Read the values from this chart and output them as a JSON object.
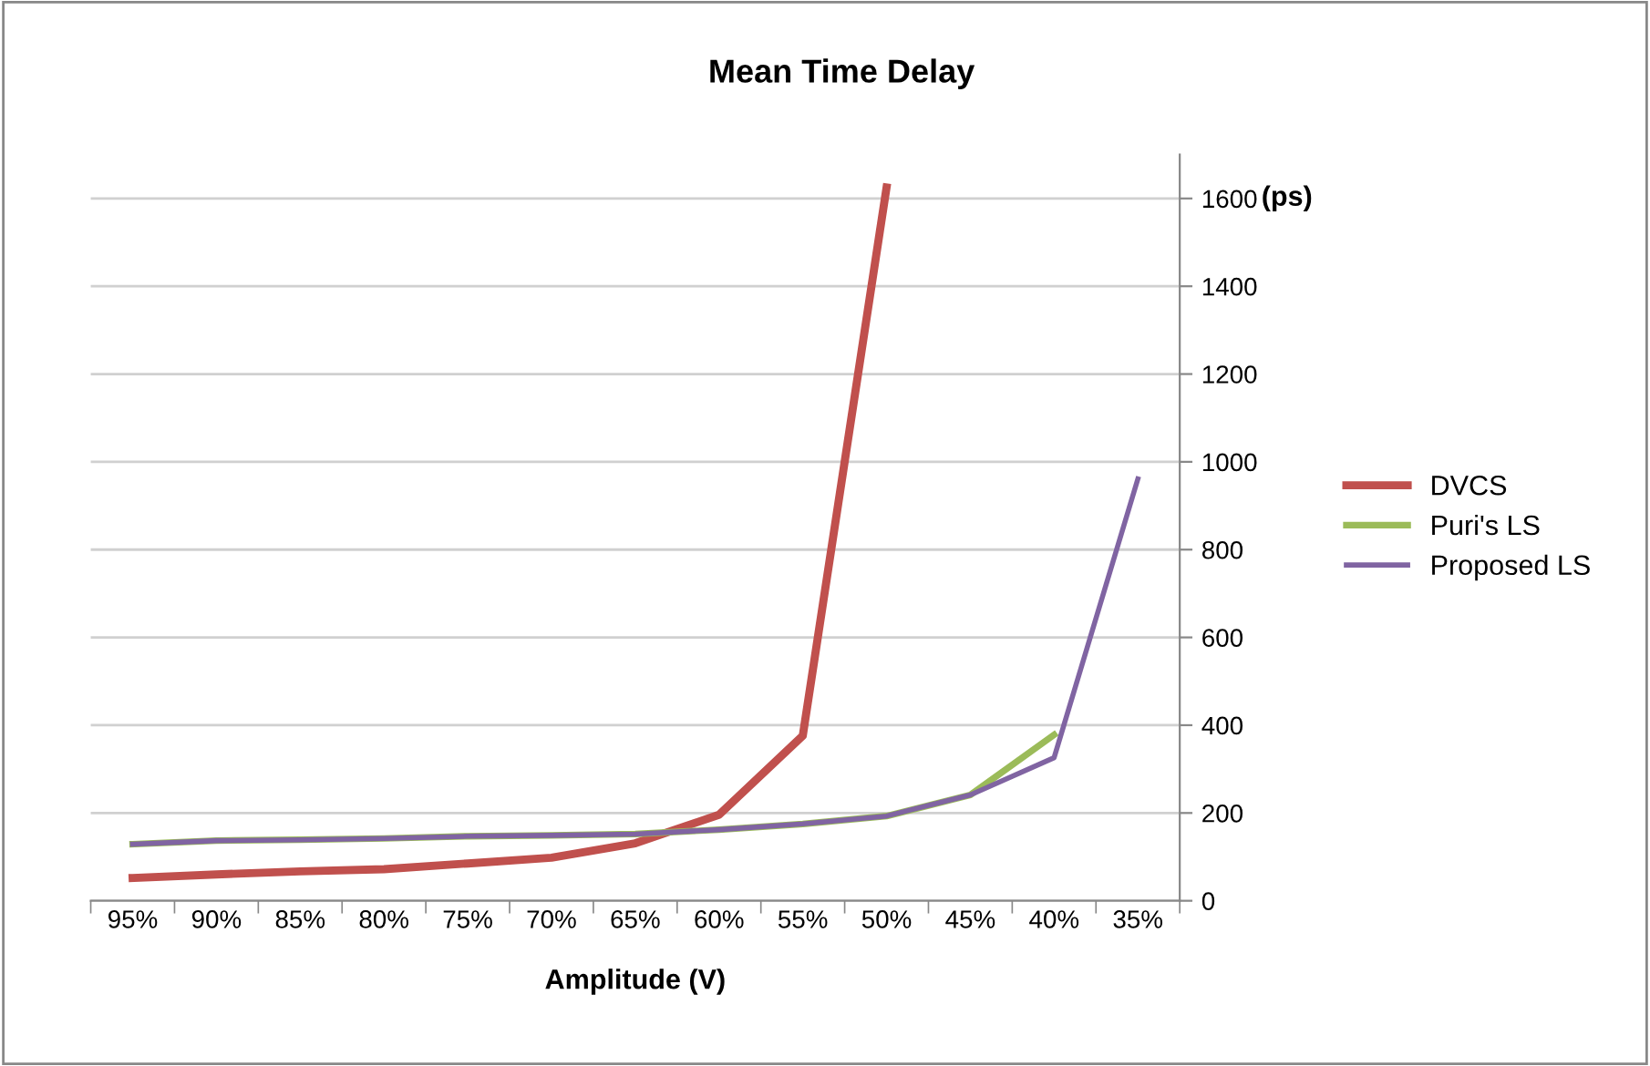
{
  "chart_data": {
    "type": "line",
    "title": "Mean Time Delay",
    "xlabel": "Amplitude (V)",
    "ylabel": "(ps)",
    "categories": [
      "95%",
      "90%",
      "85%",
      "80%",
      "75%",
      "70%",
      "65%",
      "60%",
      "55%",
      "50%",
      "45%",
      "40%",
      "35%"
    ],
    "series": [
      {
        "name": "DVCS",
        "color": "#c0504d",
        "values": [
          52,
          60,
          67,
          72,
          85,
          98,
          131,
          196,
          376,
          1625,
          null,
          null,
          null
        ]
      },
      {
        "name": "Puri's LS",
        "color": "#9bbb59",
        "values": [
          129,
          137,
          139,
          142,
          147,
          149,
          152,
          162,
          175,
          193,
          241,
          378,
          null
        ]
      },
      {
        "name": "Proposed LS",
        "color": "#8064a2",
        "values": [
          129,
          137,
          139,
          142,
          147,
          149,
          152,
          162,
          175,
          193,
          241,
          326,
          961
        ]
      }
    ],
    "ylim": [
      0,
      1700
    ],
    "yticks": [
      0,
      200,
      400,
      600,
      800,
      1000,
      1200,
      1400,
      1600
    ],
    "grid": "y",
    "legend": "right",
    "marker": "none",
    "line_style": "solid"
  }
}
